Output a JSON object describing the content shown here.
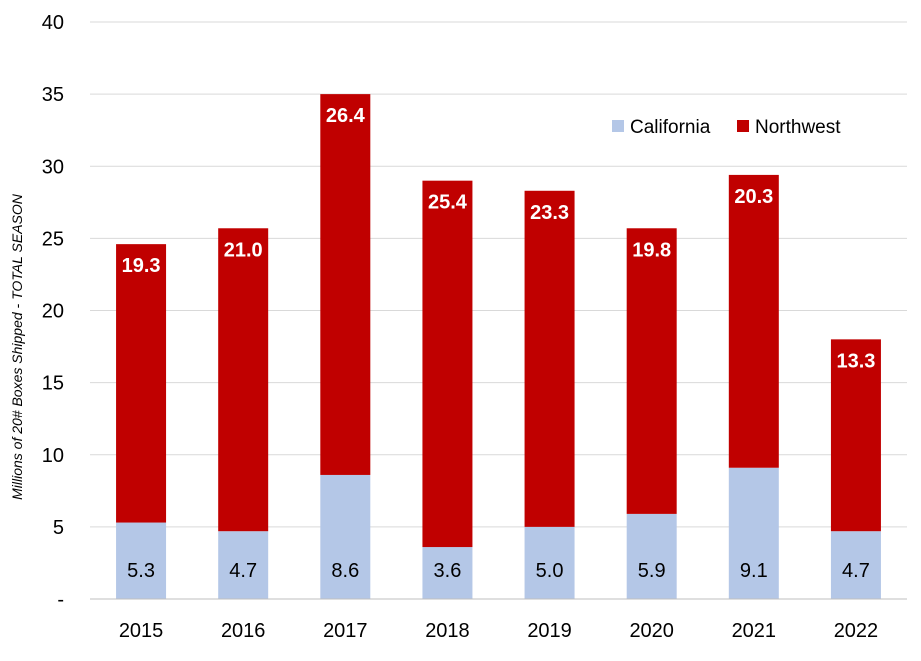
{
  "chart_data": {
    "type": "bar",
    "stacked": true,
    "categories": [
      "2015",
      "2016",
      "2017",
      "2018",
      "2019",
      "2020",
      "2021",
      "2022"
    ],
    "series": [
      {
        "name": "California",
        "values": [
          5.3,
          4.7,
          8.6,
          3.6,
          5.0,
          5.9,
          9.1,
          4.7
        ],
        "labels": [
          "5.3",
          "4.7",
          "8.6",
          "3.6",
          "5.0",
          "5.9",
          "9.1",
          "4.7"
        ],
        "color": "#b4c7e7"
      },
      {
        "name": "Northwest",
        "values": [
          19.3,
          21.0,
          26.4,
          25.4,
          23.3,
          19.8,
          20.3,
          13.3
        ],
        "labels": [
          "19.3",
          "21.0",
          "26.4",
          "25.4",
          "23.3",
          "19.8",
          "20.3",
          "13.3"
        ],
        "color": "#c00000"
      }
    ],
    "ylabel": "Millions of 20# Boxes Shipped - TOTAL SEASON",
    "ylim": [
      0,
      40
    ],
    "yticks": [
      0,
      5,
      10,
      15,
      20,
      25,
      30,
      35,
      40
    ],
    "ytick_labels": [
      "-",
      "5",
      "10",
      "15",
      "20",
      "25",
      "30",
      "35",
      "40"
    ],
    "grid": true,
    "legend_position": "top-right",
    "colors": {
      "gridline": "#d9d9d9",
      "axis": "#bfbfbf"
    }
  }
}
